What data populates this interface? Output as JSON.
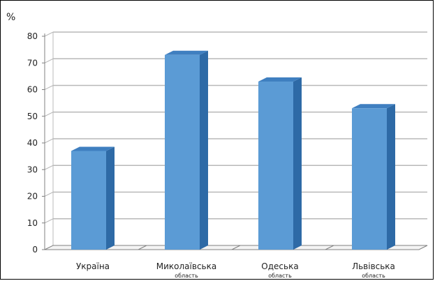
{
  "chart_data": {
    "type": "bar",
    "title": "",
    "ylabel": "%",
    "xlabel": "",
    "categories": [
      {
        "main": "Україна",
        "sub": ""
      },
      {
        "main": "Миколаївська",
        "sub": "область"
      },
      {
        "main": "Одеська",
        "sub": "область"
      },
      {
        "main": "Львівська",
        "sub": "область"
      }
    ],
    "values": [
      37,
      73,
      63,
      53
    ],
    "ylim": [
      0,
      80
    ],
    "yticks": [
      "0",
      "10",
      "20",
      "30",
      "40",
      "50",
      "60",
      "70",
      "80"
    ],
    "grid": true,
    "bar_style": "3d",
    "colors": {
      "bar_front": "#5b9bd5",
      "bar_side": "#2e6aa6",
      "bar_top": "#3f7fc0",
      "grid": "#b8b8b8",
      "axis": "#808080"
    }
  }
}
